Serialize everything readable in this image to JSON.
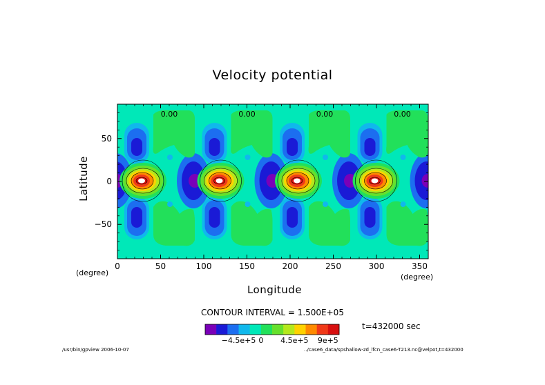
{
  "chart_data": {
    "type": "contour",
    "title": "Velocity potential",
    "xlabel": "Longitude",
    "ylabel": "Latitude",
    "x_unit": "(degree)",
    "y_unit": "(degree)",
    "xlim": [
      0,
      360
    ],
    "ylim": [
      -90,
      90
    ],
    "x_ticks": [
      "0",
      "50",
      "100",
      "150",
      "200",
      "250",
      "300",
      "350"
    ],
    "y_ticks": [
      "50",
      "0",
      "-50"
    ],
    "contour_interval_text": "CONTOUR INTERVAL = 1.500E+05",
    "time_text": "t=432000 sec",
    "zero_labels": [
      "0.00",
      "0.00",
      "0.00",
      "0.00"
    ],
    "colorbar": {
      "colors": [
        "#7a00b8",
        "#1a1ad6",
        "#1c6ef0",
        "#10b8ec",
        "#00e8b8",
        "#22e05a",
        "#66e02c",
        "#b4e81c",
        "#ffd200",
        "#ff8a00",
        "#f03a18",
        "#d81010"
      ],
      "tick_labels": [
        "−4.5e+5",
        "0",
        "4.5e+5",
        "9e+5"
      ]
    },
    "features": {
      "wave_period_deg": 90,
      "positive_max_lons": [
        30,
        120,
        210,
        300
      ],
      "negative_min_lons": [
        88,
        178,
        268,
        358
      ],
      "background_color": "#00e8b8"
    }
  },
  "footer": {
    "left": "/usr/bin/gpview  2006-10-07",
    "right": "../case6_data/spshallow-zd_lfcn_case6-T213.nc@velpot,t=432000"
  }
}
